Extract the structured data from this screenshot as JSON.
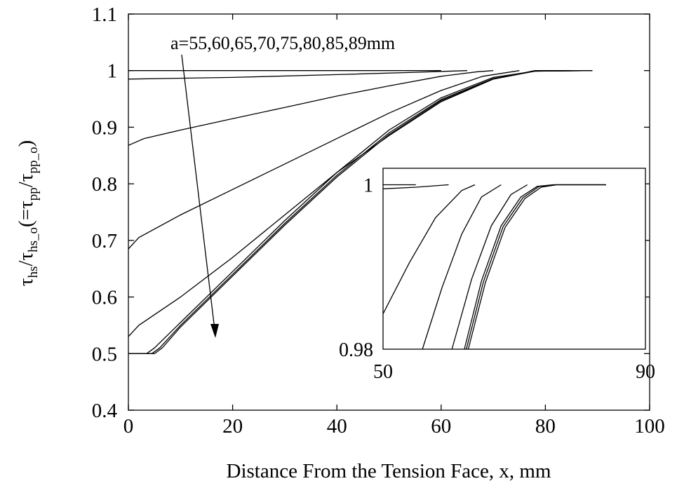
{
  "chart_data": {
    "type": "line",
    "title": "",
    "xlabel": "Distance From the Tension Face, x, mm",
    "ylabel": {
      "tau1": "τ",
      "sub1": "hs",
      "slash1": "/",
      "tau2": "τ",
      "sub2": "hs_o",
      "open": "(=",
      "tau3": "τ",
      "sub3": "pp",
      "slash2": "/",
      "tau4": "τ",
      "sub4": "pp_o",
      "close": ")"
    },
    "xlim": [
      0,
      100
    ],
    "ylim": [
      0.4,
      1.1
    ],
    "xticks": [
      "0",
      "20",
      "40",
      "60",
      "80",
      "100"
    ],
    "yticks": [
      "0.4",
      "0.5",
      "0.6",
      "0.7",
      "0.8",
      "0.9",
      "1",
      "1.1"
    ],
    "annotation": "a=55,60,65,70,75,80,85,89mm",
    "series": [
      {
        "points": [
          [
            0,
            1.0
          ],
          [
            60,
            1.0
          ]
        ]
      },
      {
        "points": [
          [
            0,
            0.985
          ],
          [
            20,
            0.988
          ],
          [
            40,
            0.993
          ],
          [
            55,
            0.997
          ],
          [
            65,
            1.0
          ]
        ]
      },
      {
        "points": [
          [
            0,
            0.868
          ],
          [
            3,
            0.88
          ],
          [
            10,
            0.895
          ],
          [
            20,
            0.915
          ],
          [
            30,
            0.935
          ],
          [
            40,
            0.955
          ],
          [
            50,
            0.973
          ],
          [
            60,
            0.99
          ],
          [
            67,
            0.998
          ],
          [
            70,
            1.0
          ]
        ]
      },
      {
        "points": [
          [
            0,
            0.685
          ],
          [
            2,
            0.705
          ],
          [
            10,
            0.745
          ],
          [
            20,
            0.79
          ],
          [
            30,
            0.835
          ],
          [
            40,
            0.88
          ],
          [
            50,
            0.925
          ],
          [
            60,
            0.965
          ],
          [
            68,
            0.99
          ],
          [
            75,
            1.0
          ]
        ]
      },
      {
        "points": [
          [
            0,
            0.53
          ],
          [
            2,
            0.55
          ],
          [
            10,
            0.6
          ],
          [
            20,
            0.67
          ],
          [
            30,
            0.745
          ],
          [
            40,
            0.82
          ],
          [
            50,
            0.885
          ],
          [
            60,
            0.945
          ],
          [
            70,
            0.985
          ],
          [
            78,
            1.0
          ],
          [
            85,
            1.0
          ]
        ]
      },
      {
        "points": [
          [
            0,
            0.5
          ],
          [
            3.5,
            0.5
          ],
          [
            5,
            0.51
          ],
          [
            10,
            0.555
          ],
          [
            20,
            0.645
          ],
          [
            30,
            0.735
          ],
          [
            40,
            0.82
          ],
          [
            50,
            0.895
          ],
          [
            60,
            0.952
          ],
          [
            70,
            0.988
          ],
          [
            78,
            0.999
          ],
          [
            89,
            1.0
          ]
        ]
      },
      {
        "points": [
          [
            0,
            0.5
          ],
          [
            4.5,
            0.5
          ],
          [
            6,
            0.51
          ],
          [
            10,
            0.55
          ],
          [
            20,
            0.64
          ],
          [
            30,
            0.73
          ],
          [
            40,
            0.815
          ],
          [
            50,
            0.89
          ],
          [
            60,
            0.949
          ],
          [
            70,
            0.986
          ],
          [
            78,
            0.999
          ],
          [
            89,
            1.0
          ]
        ]
      },
      {
        "points": [
          [
            0,
            0.5
          ],
          [
            5,
            0.5
          ],
          [
            6.5,
            0.51
          ],
          [
            10,
            0.547
          ],
          [
            20,
            0.637
          ],
          [
            30,
            0.727
          ],
          [
            40,
            0.812
          ],
          [
            50,
            0.887
          ],
          [
            60,
            0.947
          ],
          [
            70,
            0.985
          ],
          [
            78,
            0.999
          ],
          [
            89,
            1.0
          ]
        ]
      }
    ],
    "inset": {
      "xlim": [
        50,
        90
      ],
      "ylim": [
        0.98,
        1.002
      ],
      "xticks": [
        "50",
        "90"
      ],
      "yticks": [
        "0.98",
        "1"
      ],
      "series": [
        {
          "points": [
            [
              50,
              1.0
            ],
            [
              55,
              1.0
            ]
          ]
        },
        {
          "points": [
            [
              50,
              0.9995
            ],
            [
              55,
              0.9997
            ],
            [
              60,
              1.0
            ]
          ]
        },
        {
          "points": [
            [
              50,
              0.9843
            ],
            [
              54,
              0.9905
            ],
            [
              58,
              0.996
            ],
            [
              62,
              0.9993
            ],
            [
              64,
              1.0
            ]
          ]
        },
        {
          "points": [
            [
              56,
              0.98
            ],
            [
              59,
              0.9875
            ],
            [
              62,
              0.994
            ],
            [
              65,
              0.9985
            ],
            [
              68,
              1.0
            ]
          ]
        },
        {
          "points": [
            [
              60.5,
              0.98
            ],
            [
              63.5,
              0.9885
            ],
            [
              66.5,
              0.995
            ],
            [
              69.5,
              0.9988
            ],
            [
              72,
              1.0
            ]
          ]
        },
        {
          "points": [
            [
              62.4,
              0.98
            ],
            [
              65,
              0.9883
            ],
            [
              68,
              0.995
            ],
            [
              71,
              0.9985
            ],
            [
              73.5,
              0.9998
            ],
            [
              76,
              1.0
            ],
            [
              84,
              1.0
            ]
          ]
        },
        {
          "points": [
            [
              62.7,
              0.98
            ],
            [
              65.3,
              0.9882
            ],
            [
              68.3,
              0.9949
            ],
            [
              71.3,
              0.9984
            ],
            [
              73.8,
              0.9998
            ],
            [
              76,
              1.0
            ],
            [
              84,
              1.0
            ]
          ]
        },
        {
          "points": [
            [
              63.0,
              0.98
            ],
            [
              65.6,
              0.9881
            ],
            [
              68.6,
              0.9948
            ],
            [
              71.6,
              0.9983
            ],
            [
              74.1,
              0.9997
            ],
            [
              76.5,
              1.0
            ],
            [
              84,
              1.0
            ]
          ]
        }
      ]
    }
  }
}
